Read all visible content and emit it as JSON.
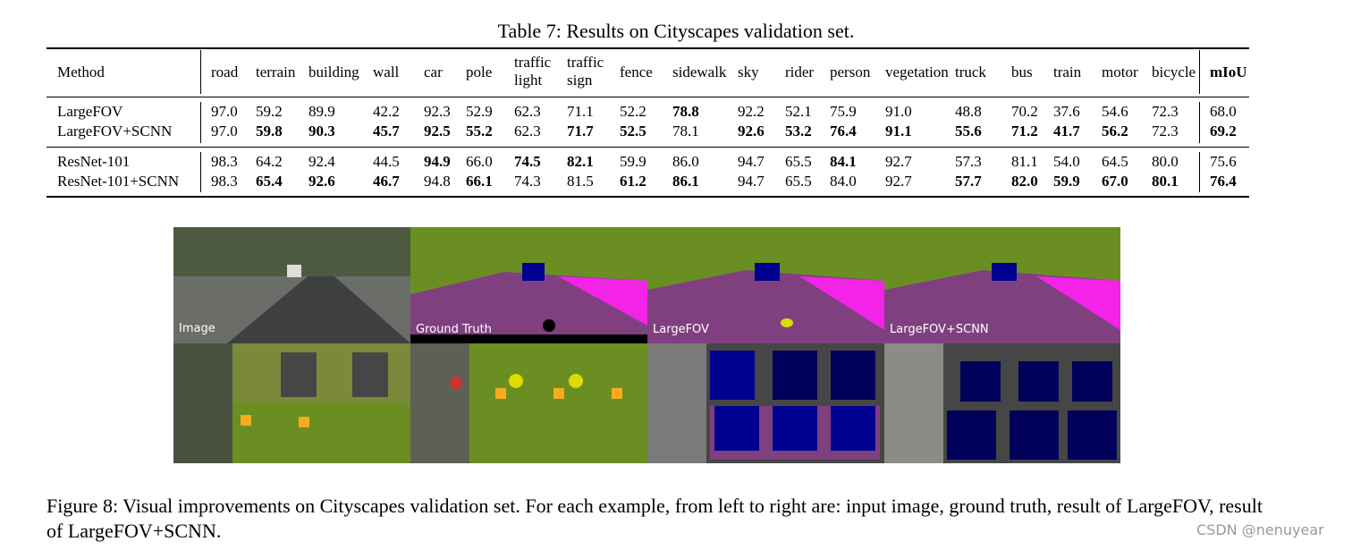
{
  "table": {
    "caption": "Table 7: Results on Cityscapes validation set.",
    "header": [
      "Method",
      "road",
      "terrain",
      "building",
      "wall",
      "car",
      "pole",
      "traffic light",
      "traffic sign",
      "fence",
      "sidewalk",
      "sky",
      "rider",
      "person",
      "vegetation",
      "truck",
      "bus",
      "train",
      "motor",
      "bicycle",
      "mIoU"
    ],
    "groups": [
      [
        {
          "method": "LargeFOV",
          "cells": [
            "97.0",
            "59.2",
            "89.9",
            "42.2",
            "92.3",
            "52.9",
            "62.3",
            "71.1",
            "52.2",
            "78.8",
            "92.2",
            "52.1",
            "75.9",
            "91.0",
            "48.8",
            "70.2",
            "37.6",
            "54.6",
            "72.3",
            "68.0"
          ],
          "bold": [
            9
          ]
        },
        {
          "method": "LargeFOV+SCNN",
          "cells": [
            "97.0",
            "59.8",
            "90.3",
            "45.7",
            "92.5",
            "55.2",
            "62.3",
            "71.7",
            "52.5",
            "78.1",
            "92.6",
            "53.2",
            "76.4",
            "91.1",
            "55.6",
            "71.2",
            "41.7",
            "56.2",
            "72.3",
            "69.2"
          ],
          "bold": [
            1,
            2,
            3,
            4,
            5,
            7,
            8,
            10,
            11,
            12,
            13,
            14,
            15,
            16,
            17,
            19
          ]
        }
      ],
      [
        {
          "method": "ResNet-101",
          "cells": [
            "98.3",
            "64.2",
            "92.4",
            "44.5",
            "94.9",
            "66.0",
            "74.5",
            "82.1",
            "59.9",
            "86.0",
            "94.7",
            "65.5",
            "84.1",
            "92.7",
            "57.3",
            "81.1",
            "54.0",
            "64.5",
            "80.0",
            "75.6"
          ],
          "bold": [
            4,
            6,
            7,
            12
          ]
        },
        {
          "method": "ResNet-101+SCNN",
          "cells": [
            "98.3",
            "65.4",
            "92.6",
            "46.7",
            "94.8",
            "66.1",
            "74.3",
            "81.5",
            "61.2",
            "86.1",
            "94.7",
            "65.5",
            "84.0",
            "92.7",
            "57.7",
            "82.0",
            "59.9",
            "67.0",
            "80.1",
            "76.4"
          ],
          "bold": [
            1,
            2,
            3,
            5,
            8,
            9,
            14,
            15,
            16,
            17,
            18,
            19
          ]
        }
      ]
    ]
  },
  "figure": {
    "labels": [
      "Image",
      "Ground Truth",
      "LargeFOV",
      "LargeFOV+SCNN"
    ],
    "caption": "Figure 8: Visual improvements on Cityscapes validation set. For each example, from left to right are: input image, ground truth, result of LargeFOV, result of LargeFOV+SCNN."
  },
  "watermark": "CSDN @nenuyear"
}
